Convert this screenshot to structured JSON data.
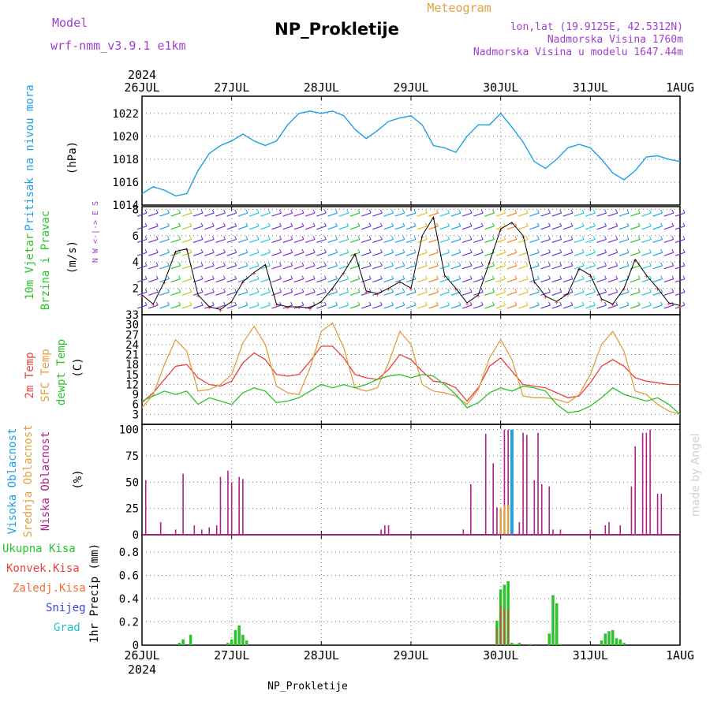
{
  "header": {
    "model_label": "Model",
    "model_name": "wrf-nmm_v3.9.1  e1km",
    "title": "NP_Prokletije",
    "subtitle": "Meteogram",
    "lonlat": "lon,lat (19.9125E, 42.5312N)",
    "elevation": "Nadmorska Visina 1760m",
    "model_elevation": "Nadmorska Visina u modelu 1647.44m",
    "watermark": "made by Angel",
    "footer": "NP_Prokletije"
  },
  "colors": {
    "pressure": "#1ea0e6",
    "temp2m": "#e8413c",
    "sfc_temp": "#e0a040",
    "dewpoint": "#2cc22c",
    "high_cloud": "#1ea0e6",
    "mid_cloud": "#e0a040",
    "low_cloud": "#b0208c",
    "total_precip": "#2cc22c",
    "conv_precip": "#e8413c",
    "purple_text": "#a040d0"
  },
  "chart_data": [
    {
      "type": "line",
      "id": "pressure",
      "ylabel": [
        "Pritisak na nivou mora",
        "(hPa)"
      ],
      "ylim": [
        1014,
        1023.5
      ],
      "yticks": [
        1014,
        1016,
        1018,
        1020,
        1022
      ],
      "x_labels_top": [
        "26JUL",
        "27JUL",
        "28JUL",
        "29JUL",
        "30JUL",
        "31JUL",
        "1AUG"
      ],
      "year": "2024",
      "grid": true,
      "x_hours": [
        0,
        3,
        6,
        9,
        12,
        15,
        18,
        21,
        24,
        27,
        30,
        33,
        36,
        39,
        42,
        45,
        48,
        51,
        54,
        57,
        60,
        63,
        66,
        69,
        72,
        75,
        78,
        81,
        84,
        87,
        90,
        93,
        96,
        99,
        102,
        105,
        108,
        111,
        114,
        117,
        120,
        123,
        126,
        129,
        132,
        135,
        138,
        141,
        144
      ],
      "values": [
        1015.0,
        1015.6,
        1015.3,
        1014.8,
        1015.0,
        1017.0,
        1018.5,
        1019.2,
        1019.6,
        1020.2,
        1019.6,
        1019.2,
        1019.6,
        1021.0,
        1022.0,
        1022.2,
        1022.0,
        1022.2,
        1021.8,
        1020.6,
        1019.8,
        1020.5,
        1021.3,
        1021.6,
        1021.8,
        1021.0,
        1019.2,
        1019.0,
        1018.6,
        1020.0,
        1021.0,
        1021.0,
        1022.0,
        1020.8,
        1019.5,
        1017.8,
        1017.2,
        1018.0,
        1019.0,
        1019.3,
        1019.0,
        1018.0,
        1016.8,
        1016.2,
        1017.0,
        1018.2,
        1018.3,
        1018.0,
        1017.8
      ]
    },
    {
      "type": "line",
      "id": "wind",
      "ylabel": [
        "10m Vjetar",
        "Brzina i Pravac",
        "(m/s)"
      ],
      "direction_legend": "N W <-|-> E S",
      "ylim": [
        0,
        8.2
      ],
      "yticks": [
        2,
        4,
        6,
        8
      ],
      "grid": true,
      "x_hours": [
        0,
        3,
        6,
        9,
        12,
        15,
        18,
        21,
        24,
        27,
        30,
        33,
        36,
        39,
        42,
        45,
        48,
        51,
        54,
        57,
        60,
        63,
        66,
        69,
        72,
        75,
        78,
        81,
        84,
        87,
        90,
        93,
        96,
        99,
        102,
        105,
        108,
        111,
        114,
        117,
        120,
        123,
        126,
        129,
        132,
        135,
        138,
        141,
        144
      ],
      "values": [
        1.5,
        0.8,
        2.5,
        4.8,
        5.0,
        1.5,
        0.6,
        0.4,
        1.0,
        2.5,
        3.2,
        3.8,
        0.8,
        0.6,
        0.6,
        0.5,
        1.0,
        2.0,
        3.2,
        4.6,
        1.8,
        1.6,
        2.0,
        2.5,
        2.0,
        6.0,
        7.4,
        3.0,
        2.0,
        0.9,
        1.5,
        4.0,
        6.5,
        7.0,
        6.0,
        2.5,
        1.4,
        1.0,
        1.6,
        3.5,
        3.0,
        1.2,
        0.8,
        2.0,
        4.2,
        3.0,
        2.0,
        0.9,
        0.7
      ]
    },
    {
      "type": "line",
      "id": "temperature",
      "ylabel": [
        "2m Temp",
        "SFC Temp",
        "dewpt Temp",
        "(C)"
      ],
      "ylim": [
        0,
        33
      ],
      "yticks": [
        3,
        6,
        9,
        12,
        15,
        18,
        21,
        24,
        27,
        30,
        33
      ],
      "grid": true,
      "x_hours": [
        0,
        3,
        6,
        9,
        12,
        15,
        18,
        21,
        24,
        27,
        30,
        33,
        36,
        39,
        42,
        45,
        48,
        51,
        54,
        57,
        60,
        63,
        66,
        69,
        72,
        75,
        78,
        81,
        84,
        87,
        90,
        93,
        96,
        99,
        102,
        105,
        108,
        111,
        114,
        117,
        120,
        123,
        126,
        129,
        132,
        135,
        138,
        141,
        144
      ],
      "series": [
        {
          "name": "2m Temp",
          "values": [
            6.5,
            9.5,
            13.5,
            17.5,
            18.0,
            14.0,
            12.0,
            11.5,
            13.0,
            18.5,
            21.5,
            19.5,
            15.0,
            14.5,
            15.0,
            19.0,
            23.5,
            23.5,
            20.0,
            15.0,
            14.0,
            13.5,
            16.5,
            21.0,
            19.5,
            16.0,
            13.0,
            12.5,
            11.0,
            7.0,
            11.0,
            17.5,
            20.0,
            16.0,
            12.0,
            11.5,
            11.0,
            9.5,
            8.0,
            8.5,
            12.5,
            17.5,
            19.5,
            17.5,
            14.0,
            13.0,
            12.5,
            12.0,
            12.0
          ]
        },
        {
          "name": "SFC Temp",
          "values": [
            5.0,
            9.0,
            18.0,
            25.5,
            22.0,
            10.0,
            10.5,
            12.0,
            15.0,
            24.5,
            29.5,
            24.0,
            11.5,
            9.5,
            9.0,
            17.0,
            28.0,
            30.5,
            23.0,
            11.0,
            10.0,
            11.0,
            18.5,
            28.0,
            24.0,
            12.0,
            10.0,
            9.5,
            8.5,
            6.0,
            10.5,
            20.0,
            25.5,
            19.5,
            8.5,
            8.0,
            8.0,
            7.5,
            6.5,
            9.0,
            15.0,
            24.0,
            28.0,
            22.0,
            10.0,
            9.0,
            6.0,
            4.0,
            3.0
          ]
        },
        {
          "name": "dewpt Temp",
          "values": [
            7.0,
            8.5,
            10.0,
            9.0,
            10.0,
            6.0,
            8.0,
            7.0,
            6.0,
            9.5,
            11.0,
            10.0,
            6.5,
            7.0,
            8.0,
            10.0,
            12.0,
            11.0,
            12.0,
            11.0,
            12.0,
            13.5,
            14.5,
            15.0,
            14.0,
            15.0,
            14.5,
            12.0,
            9.0,
            5.0,
            6.5,
            9.5,
            11.0,
            10.0,
            11.5,
            11.0,
            10.0,
            6.0,
            3.5,
            4.0,
            5.5,
            8.0,
            11.0,
            9.0,
            8.0,
            7.0,
            8.0,
            6.0,
            3.0
          ]
        }
      ]
    },
    {
      "type": "bar",
      "id": "clouds",
      "ylabel": [
        "Visoka Oblacnost",
        "Srednja Oblacnost",
        "Niska Oblacnost",
        "(%)"
      ],
      "ylim": [
        0,
        105
      ],
      "yticks": [
        0,
        25,
        50,
        75,
        100
      ],
      "grid": true,
      "series": [
        {
          "name": "Niska Oblacnost",
          "x_hours": [
            1,
            5,
            9,
            11,
            14,
            16,
            18,
            20,
            21,
            23,
            24,
            26,
            27,
            64,
            65,
            66,
            86,
            88,
            92,
            94,
            95,
            97,
            98,
            99,
            101,
            102,
            103,
            105,
            106,
            107,
            109,
            110,
            112,
            120,
            124,
            125,
            128,
            131,
            132,
            134,
            135,
            136,
            138,
            139
          ],
          "values": [
            52,
            12,
            5,
            58,
            9,
            5,
            7,
            9,
            55,
            61,
            50,
            55,
            53,
            5,
            9,
            9,
            5,
            48,
            96,
            68,
            26,
            100,
            100,
            9,
            12,
            97,
            95,
            52,
            97,
            48,
            46,
            5,
            5,
            5,
            9,
            12,
            9,
            46,
            84,
            97,
            97,
            100,
            39,
            39
          ]
        },
        {
          "name": "Srednja Oblacnost",
          "x_hours": [
            96,
            97,
            98,
            99
          ],
          "values": [
            25,
            28,
            28,
            8
          ]
        },
        {
          "name": "Visoka Oblacnost",
          "x_hours": [
            99
          ],
          "values": [
            100
          ]
        }
      ]
    },
    {
      "type": "bar",
      "id": "precip",
      "ylabel": [
        "1hr Precip (mm)"
      ],
      "legend": [
        "Ukupna Kisa",
        "Konvek.Kisa",
        "Zaledj.Kisa",
        "Snijeg",
        "Grad"
      ],
      "x_labels_bottom": [
        "26JUL",
        "27JUL",
        "28JUL",
        "29JUL",
        "30JUL",
        "31JUL",
        "1AUG"
      ],
      "year": "2024",
      "ylim": [
        0,
        0.95
      ],
      "yticks": [
        0,
        0.2,
        0.4,
        0.6,
        0.8
      ],
      "grid": true,
      "series": [
        {
          "name": "Ukupna Kisa",
          "x_hours": [
            10,
            11,
            13,
            23,
            24,
            25,
            26,
            27,
            28,
            95,
            96,
            97,
            98,
            99,
            100,
            101,
            104,
            109,
            110,
            111,
            112,
            123,
            124,
            125,
            126,
            127,
            128,
            129
          ],
          "values": [
            0.02,
            0.05,
            0.09,
            0.02,
            0.05,
            0.13,
            0.17,
            0.09,
            0.04,
            0.21,
            0.48,
            0.52,
            0.55,
            0.02,
            0.01,
            0.02,
            0.01,
            0.1,
            0.43,
            0.36,
            0.01,
            0.04,
            0.1,
            0.12,
            0.13,
            0.06,
            0.05,
            0.02
          ]
        },
        {
          "name": "Konvek.Kisa",
          "x_hours": [
            95,
            96,
            97,
            98
          ],
          "values": [
            0.15,
            0.35,
            0.31,
            0.3
          ]
        }
      ]
    }
  ]
}
